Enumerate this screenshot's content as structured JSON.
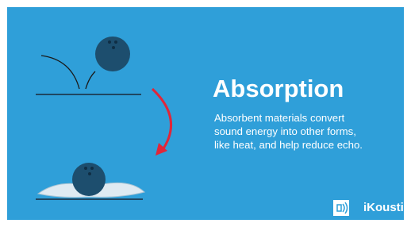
{
  "slide": {
    "title": "Absorption",
    "body": "Absorbent materials convert sound energy into other forms, like heat, and help reduce echo.",
    "brand": "iKoustic"
  }
}
